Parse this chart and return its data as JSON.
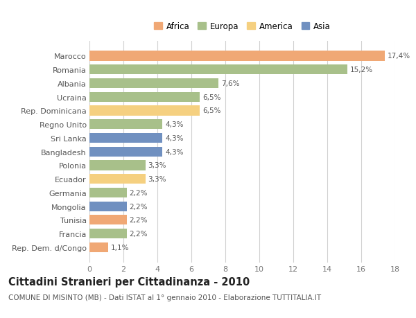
{
  "countries": [
    "Rep. Dem. d/Congo",
    "Francia",
    "Tunisia",
    "Mongolia",
    "Germania",
    "Ecuador",
    "Polonia",
    "Bangladesh",
    "Sri Lanka",
    "Regno Unito",
    "Rep. Dominicana",
    "Ucraina",
    "Albania",
    "Romania",
    "Marocco"
  ],
  "values": [
    1.1,
    2.2,
    2.2,
    2.2,
    2.2,
    3.3,
    3.3,
    4.3,
    4.3,
    4.3,
    6.5,
    6.5,
    7.6,
    15.2,
    17.4
  ],
  "labels": [
    "1,1%",
    "2,2%",
    "2,2%",
    "2,2%",
    "2,2%",
    "3,3%",
    "3,3%",
    "4,3%",
    "4,3%",
    "4,3%",
    "6,5%",
    "6,5%",
    "7,6%",
    "15,2%",
    "17,4%"
  ],
  "continents": [
    "Africa",
    "Europa",
    "Africa",
    "Asia",
    "Europa",
    "America",
    "Europa",
    "Asia",
    "Asia",
    "Europa",
    "America",
    "Europa",
    "Europa",
    "Europa",
    "Africa"
  ],
  "colors": {
    "Africa": "#F0A875",
    "Europa": "#A8C08A",
    "America": "#F5D080",
    "Asia": "#7090C0"
  },
  "legend_order": [
    "Africa",
    "Europa",
    "America",
    "Asia"
  ],
  "title": "Cittadini Stranieri per Cittadinanza - 2010",
  "subtitle": "COMUNE DI MISINTO (MB) - Dati ISTAT al 1° gennaio 2010 - Elaborazione TUTTITALIA.IT",
  "xlim": [
    0,
    18
  ],
  "xticks": [
    0,
    2,
    4,
    6,
    8,
    10,
    12,
    14,
    16,
    18
  ],
  "background_color": "#ffffff",
  "grid_color": "#d0d0d0",
  "bar_height": 0.72,
  "title_fontsize": 10.5,
  "subtitle_fontsize": 7.5,
  "label_fontsize": 7.5,
  "ytick_fontsize": 8,
  "xtick_fontsize": 8,
  "legend_fontsize": 8.5
}
